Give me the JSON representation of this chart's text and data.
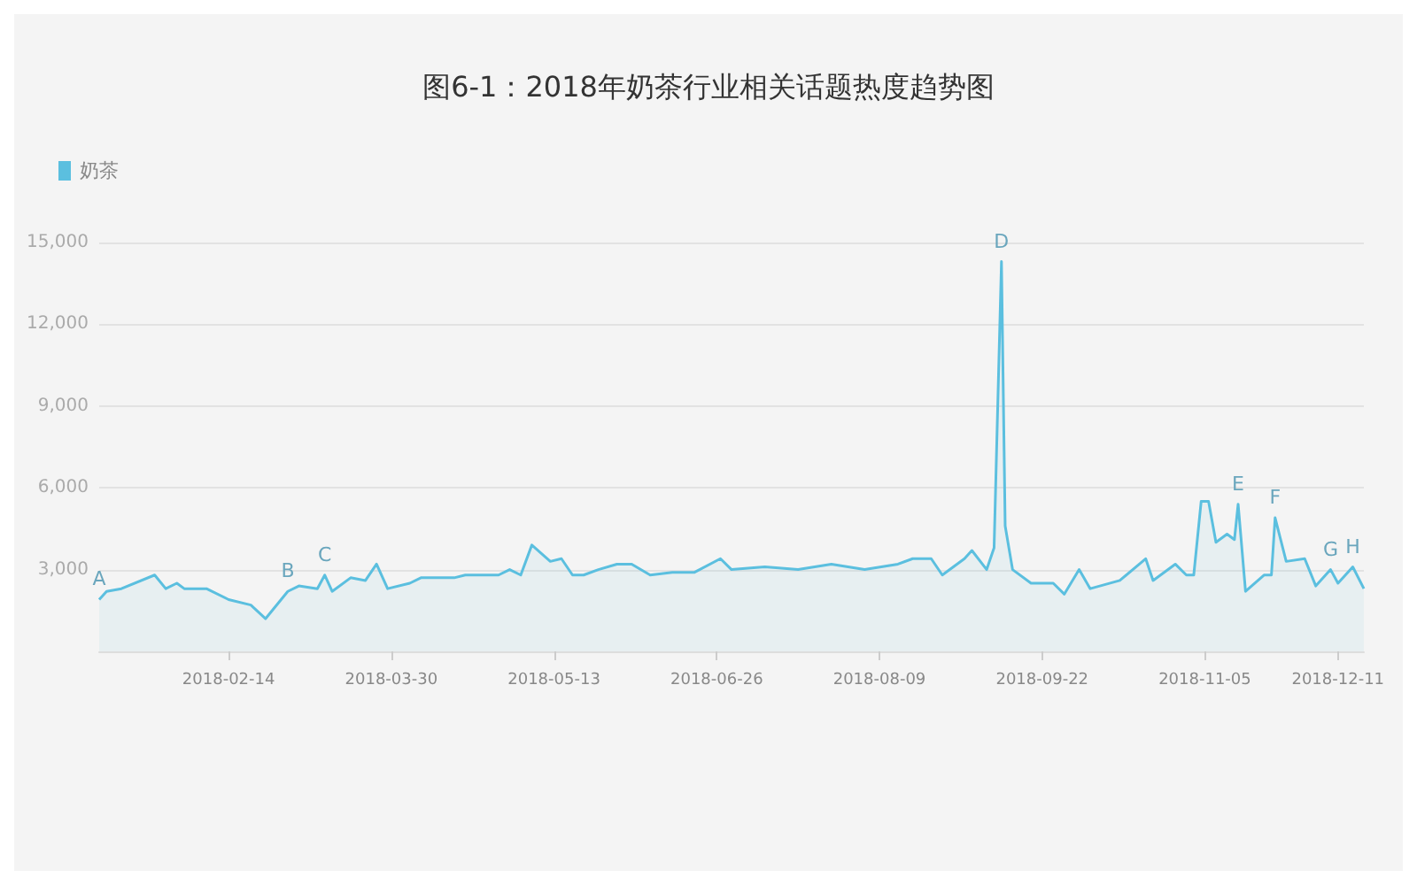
{
  "chart_data": {
    "type": "area",
    "title": "图6-1：2018年奶茶行业相关话题热度趋势图",
    "legend": "top left",
    "grid": "y",
    "marker": "none",
    "line_style": "solid",
    "xlim": [
      "2018-01-10",
      "2018-12-18"
    ],
    "xticks": [
      "2018-02-14",
      "2018-03-30",
      "2018-05-13",
      "2018-06-26",
      "2018-08-09",
      "2018-09-22",
      "2018-11-05",
      "2018-12-11"
    ],
    "ylim": [
      0,
      15000
    ],
    "yticks": [
      {
        "value": 3000,
        "label": "3,000"
      },
      {
        "value": 6000,
        "label": "6,000"
      },
      {
        "value": 9000,
        "label": "9,000"
      },
      {
        "value": 12000,
        "label": "12,000"
      },
      {
        "value": 15000,
        "label": "15,000"
      }
    ],
    "series": [
      {
        "name": "奶茶",
        "color": "#5bbfdf",
        "x": [
          "2018-01-10",
          "2018-01-12",
          "2018-01-16",
          "2018-01-25",
          "2018-01-28",
          "2018-01-31",
          "2018-02-02",
          "2018-02-08",
          "2018-02-14",
          "2018-02-20",
          "2018-02-24",
          "2018-03-02",
          "2018-03-05",
          "2018-03-10",
          "2018-03-12",
          "2018-03-14",
          "2018-03-19",
          "2018-03-23",
          "2018-03-26",
          "2018-03-29",
          "2018-04-04",
          "2018-04-07",
          "2018-04-16",
          "2018-04-19",
          "2018-04-28",
          "2018-05-01",
          "2018-05-04",
          "2018-05-07",
          "2018-05-12",
          "2018-05-15",
          "2018-05-18",
          "2018-05-21",
          "2018-05-25",
          "2018-05-30",
          "2018-06-03",
          "2018-06-08",
          "2018-06-14",
          "2018-06-20",
          "2018-06-27",
          "2018-06-30",
          "2018-07-09",
          "2018-07-18",
          "2018-07-27",
          "2018-08-05",
          "2018-08-14",
          "2018-08-18",
          "2018-08-23",
          "2018-08-26",
          "2018-09-01",
          "2018-09-03",
          "2018-09-07",
          "2018-09-09",
          "2018-09-11",
          "2018-09-12",
          "2018-09-14",
          "2018-09-19",
          "2018-09-25",
          "2018-09-28",
          "2018-10-02",
          "2018-10-05",
          "2018-10-13",
          "2018-10-20",
          "2018-10-22",
          "2018-10-28",
          "2018-10-31",
          "2018-11-02",
          "2018-11-04",
          "2018-11-06",
          "2018-11-08",
          "2018-11-11",
          "2018-11-13",
          "2018-11-14",
          "2018-11-16",
          "2018-11-21",
          "2018-11-23",
          "2018-11-24",
          "2018-11-27",
          "2018-12-02",
          "2018-12-05",
          "2018-12-09",
          "2018-12-11",
          "2018-12-15",
          "2018-12-18"
        ],
        "values": [
          1900,
          2200,
          2300,
          2800,
          2300,
          2500,
          2300,
          2300,
          1900,
          1700,
          1200,
          2200,
          2400,
          2300,
          2800,
          2200,
          2700,
          2600,
          3200,
          2300,
          2500,
          2700,
          2700,
          2800,
          2800,
          3000,
          2800,
          3900,
          3300,
          3400,
          2800,
          2800,
          3000,
          3200,
          3200,
          2800,
          2900,
          2900,
          3400,
          3000,
          3100,
          3000,
          3200,
          3000,
          3200,
          3400,
          3400,
          2800,
          3400,
          3700,
          3000,
          3800,
          14300,
          4600,
          3000,
          2500,
          2500,
          2100,
          3000,
          2300,
          2600,
          3400,
          2600,
          3200,
          2800,
          2800,
          5500,
          5500,
          4000,
          4300,
          4100,
          5400,
          2200,
          2800,
          2800,
          4900,
          3300,
          3400,
          2400,
          3000,
          2500,
          3100,
          2300
        ]
      }
    ],
    "annotations": [
      {
        "text": "A",
        "x": "2018-01-10",
        "y": 1900
      },
      {
        "text": "B",
        "x": "2018-03-02",
        "y": 2200
      },
      {
        "text": "C",
        "x": "2018-03-12",
        "y": 2800
      },
      {
        "text": "D",
        "x": "2018-09-11",
        "y": 14300
      },
      {
        "text": "E",
        "x": "2018-11-14",
        "y": 5400
      },
      {
        "text": "F",
        "x": "2018-11-24",
        "y": 4900
      },
      {
        "text": "G",
        "x": "2018-12-09",
        "y": 3000
      },
      {
        "text": "H",
        "x": "2018-12-15",
        "y": 3100
      }
    ]
  }
}
